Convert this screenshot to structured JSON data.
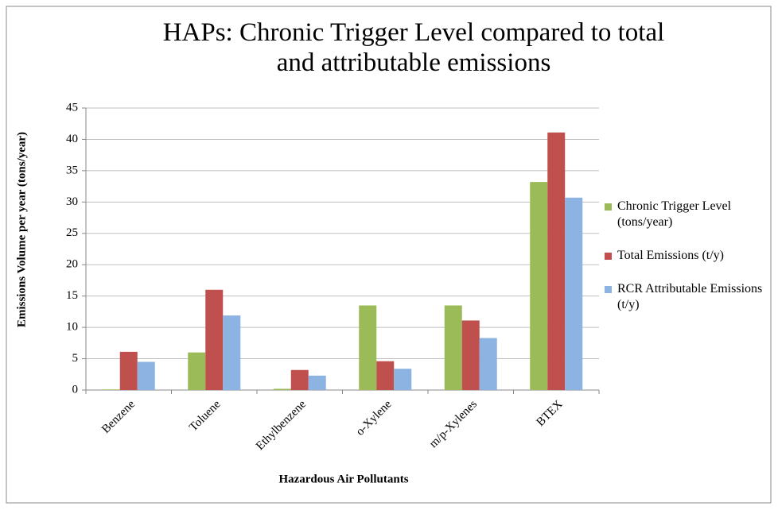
{
  "chart_data": {
    "type": "bar",
    "title": "HAPs: Chronic Trigger Level compared to total and attributable emissions",
    "x_label": "Hazardous Air Pollutants",
    "y_label": "Emissions Volume per year (tons/year)",
    "categories": [
      "Benzene",
      "Toluene",
      "Ethylbenzene",
      "o-Xylene",
      "m/p-Xylenes",
      "BTEX"
    ],
    "series": [
      {
        "name": "Chronic Trigger Level (tons/year)",
        "color": "#9bbb59",
        "values": [
          0.1,
          6,
          0.2,
          13.5,
          13.5,
          33.2
        ]
      },
      {
        "name": "Total Emissions (t/y)",
        "color": "#c0504d",
        "values": [
          6.1,
          16,
          3.2,
          4.6,
          11.1,
          41.1
        ]
      },
      {
        "name": "RCR Attributable Emissions (t/y)",
        "color": "#8db3e2",
        "values": [
          4.5,
          11.9,
          2.3,
          3.4,
          8.3,
          30.7
        ]
      }
    ],
    "ylim": [
      0,
      45
    ],
    "yticks": [
      0,
      5,
      10,
      15,
      20,
      25,
      30,
      35,
      40,
      45
    ],
    "grid": true,
    "legend": "right"
  }
}
